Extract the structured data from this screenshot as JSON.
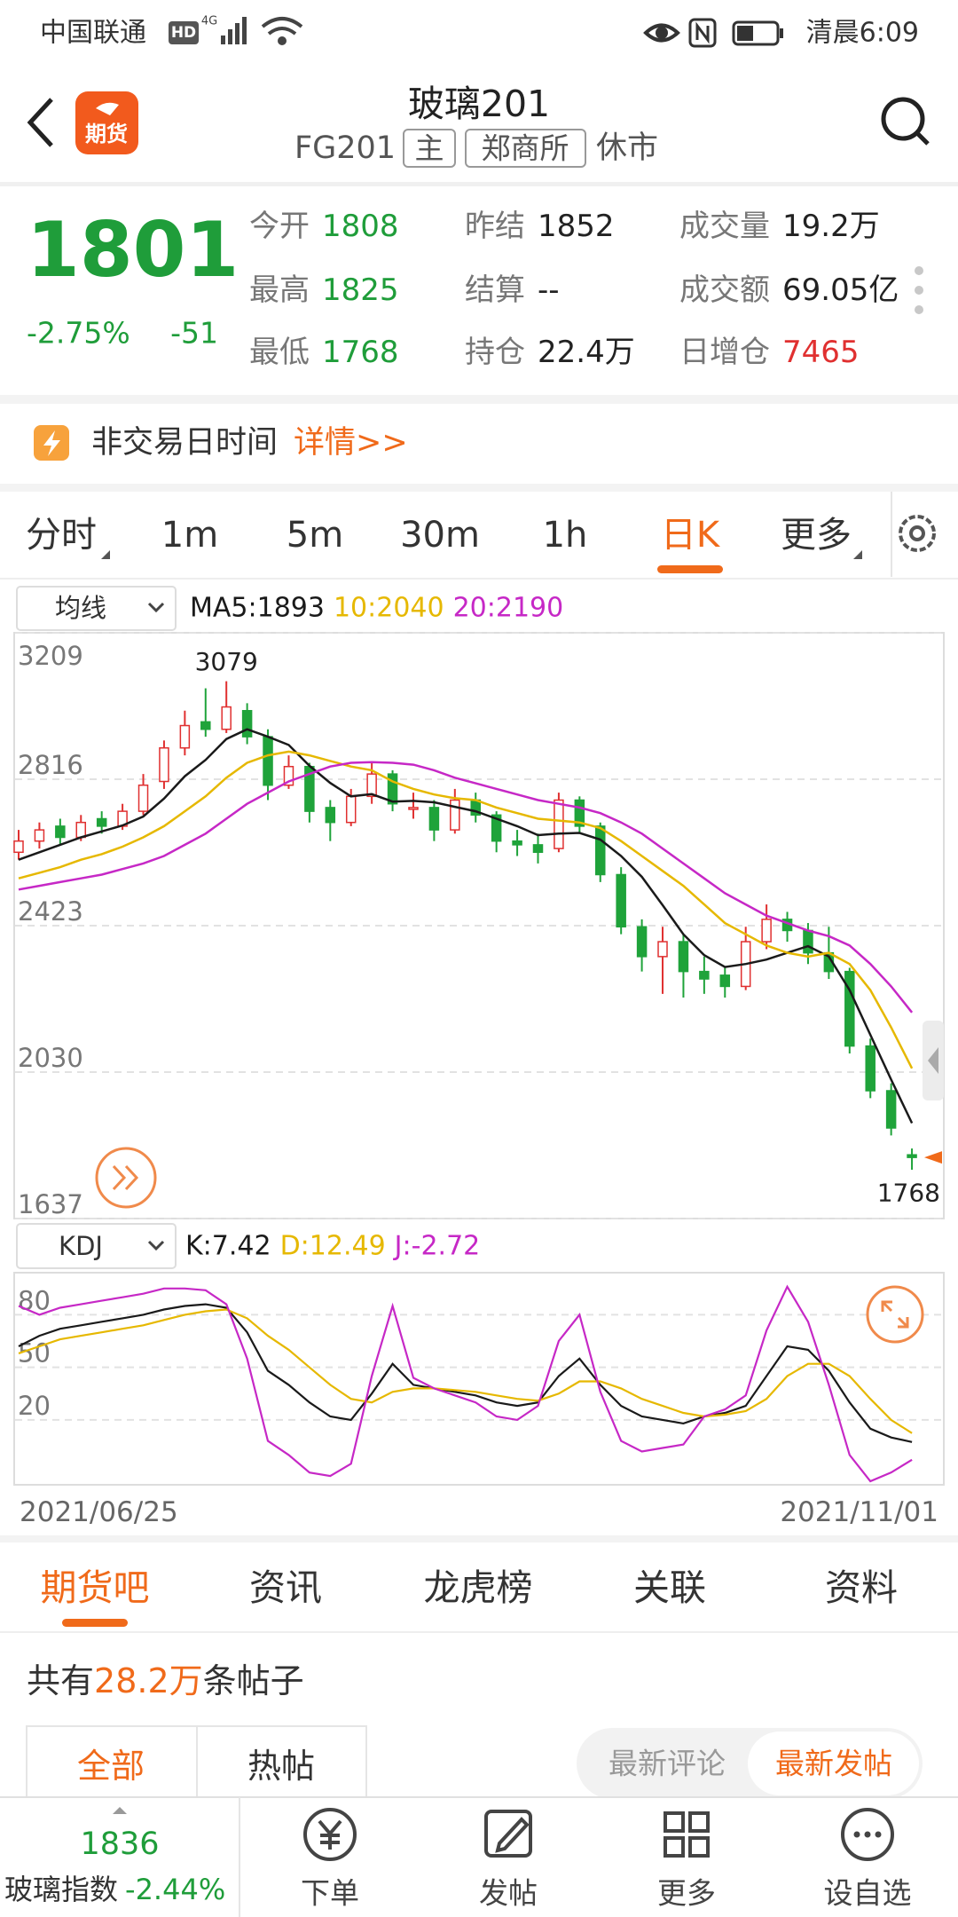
{
  "status_bar": {
    "carrier": "中国联通",
    "badges": [
      "HD",
      "4G"
    ],
    "time": "清晨6:09"
  },
  "header": {
    "logo": "期货",
    "title": "玻璃201",
    "code": "FG201",
    "tags": [
      "主",
      "郑商所"
    ],
    "status": "休市"
  },
  "quote": {
    "price": "1801",
    "change_pct": "-2.75%",
    "change": "-51",
    "color": "#1f9d3a",
    "fields": [
      {
        "label": "今开",
        "value": "1808",
        "color": "#1f9d3a"
      },
      {
        "label": "昨结",
        "value": "1852",
        "color": "#222222"
      },
      {
        "label": "成交量",
        "value": "19.2万",
        "color": "#222222"
      },
      {
        "label": "最高",
        "value": "1825",
        "color": "#1f9d3a"
      },
      {
        "label": "结算",
        "value": "--",
        "color": "#222222"
      },
      {
        "label": "成交额",
        "value": "69.05亿",
        "color": "#222222"
      },
      {
        "label": "最低",
        "value": "1768",
        "color": "#1f9d3a"
      },
      {
        "label": "持仓",
        "value": "22.4万",
        "color": "#222222"
      },
      {
        "label": "日增仓",
        "value": "7465",
        "color": "#e03030"
      }
    ]
  },
  "notice": {
    "text": "非交易日时间",
    "link": "详情>>"
  },
  "period_tabs": {
    "items": [
      "分时",
      "1m",
      "5m",
      "30m",
      "1h",
      "日K",
      "更多"
    ],
    "active": "日K"
  },
  "chart_data": [
    {
      "type": "candlestick",
      "indicator": "均线",
      "up_color": "#e03030",
      "down_color": "#1fa33a",
      "open": [
        2620,
        2650,
        2690,
        2660,
        2710,
        2690,
        2730,
        2810,
        2900,
        2970,
        2950,
        3000,
        2930,
        2800,
        2850,
        2740,
        2700,
        2770,
        2830,
        2740,
        2740,
        2680,
        2760,
        2720,
        2650,
        2640,
        2630,
        2760,
        2690,
        2560,
        2420,
        2340,
        2380,
        2300,
        2290,
        2260,
        2380,
        2440,
        2410,
        2350,
        2300,
        2100,
        1980,
        1808
      ],
      "high": [
        2680,
        2700,
        2710,
        2720,
        2730,
        2750,
        2830,
        2920,
        3000,
        3060,
        3079,
        3020,
        2950,
        2880,
        2860,
        2760,
        2790,
        2860,
        2840,
        2780,
        2760,
        2790,
        2780,
        2730,
        2680,
        2670,
        2780,
        2770,
        2700,
        2580,
        2440,
        2420,
        2400,
        2340,
        2310,
        2420,
        2480,
        2460,
        2430,
        2420,
        2310,
        2120,
        2000,
        1825
      ],
      "low": [
        2600,
        2630,
        2640,
        2650,
        2670,
        2680,
        2720,
        2790,
        2880,
        2930,
        2940,
        2910,
        2760,
        2790,
        2700,
        2650,
        2690,
        2750,
        2730,
        2710,
        2650,
        2670,
        2700,
        2620,
        2610,
        2590,
        2620,
        2670,
        2540,
        2400,
        2300,
        2240,
        2230,
        2240,
        2230,
        2250,
        2360,
        2380,
        2320,
        2280,
        2080,
        1960,
        1860,
        1768
      ],
      "close": [
        2650,
        2680,
        2660,
        2700,
        2690,
        2730,
        2800,
        2900,
        2960,
        2950,
        3010,
        2930,
        2800,
        2850,
        2730,
        2700,
        2770,
        2830,
        2750,
        2740,
        2680,
        2760,
        2720,
        2650,
        2640,
        2620,
        2760,
        2690,
        2560,
        2420,
        2340,
        2380,
        2300,
        2280,
        2260,
        2380,
        2440,
        2410,
        2350,
        2300,
        2100,
        1980,
        1880,
        1801
      ],
      "overlays": [
        {
          "name": "MA5:1893",
          "color": "#1a1a1a",
          "values": [
            2600,
            2620,
            2640,
            2660,
            2676,
            2692,
            2716,
            2764,
            2824,
            2868,
            2924,
            2950,
            2930,
            2908,
            2852,
            2806,
            2770,
            2776,
            2756,
            2758,
            2754,
            2742,
            2730,
            2710,
            2690,
            2666,
            2670,
            2672,
            2654,
            2610,
            2554,
            2478,
            2400,
            2344,
            2312,
            2320,
            2332,
            2350,
            2368,
            2340,
            2250,
            2130,
            2010,
            1893
          ]
        },
        {
          "name": "10:2040",
          "color": "#e6b800",
          "values": [
            2550,
            2565,
            2580,
            2600,
            2615,
            2635,
            2660,
            2690,
            2730,
            2770,
            2820,
            2860,
            2880,
            2890,
            2880,
            2865,
            2850,
            2840,
            2810,
            2790,
            2775,
            2765,
            2760,
            2740,
            2725,
            2710,
            2705,
            2700,
            2685,
            2650,
            2610,
            2570,
            2530,
            2480,
            2430,
            2400,
            2370,
            2350,
            2340,
            2350,
            2320,
            2250,
            2150,
            2040
          ]
        },
        {
          "name": "20:2190",
          "color": "#c628c6",
          "values": [
            2520,
            2530,
            2540,
            2550,
            2560,
            2575,
            2590,
            2610,
            2640,
            2670,
            2710,
            2750,
            2780,
            2810,
            2830,
            2850,
            2860,
            2862,
            2860,
            2855,
            2840,
            2820,
            2805,
            2790,
            2775,
            2760,
            2750,
            2740,
            2725,
            2700,
            2670,
            2630,
            2590,
            2550,
            2510,
            2480,
            2450,
            2430,
            2410,
            2395,
            2370,
            2320,
            2260,
            2190
          ]
        }
      ],
      "ylim": [
        1637,
        3209
      ],
      "yticks": [
        1637,
        2030,
        2423,
        2816,
        3209
      ],
      "grid": true
    },
    {
      "type": "line",
      "indicator": "KDJ",
      "categories": [
        "2021/06/25",
        null,
        null,
        null,
        null,
        null,
        null,
        null,
        null,
        null,
        null,
        null,
        null,
        null,
        null,
        null,
        null,
        null,
        null,
        null,
        null,
        null,
        null,
        null,
        null,
        null,
        null,
        null,
        null,
        null,
        null,
        null,
        null,
        null,
        null,
        null,
        null,
        null,
        null,
        null,
        null,
        null,
        null,
        "2021/11/01"
      ],
      "series": [
        {
          "name": "K:7.42",
          "color": "#1a1a1a",
          "values": [
            62,
            68,
            72,
            74,
            76,
            78,
            80,
            83,
            85,
            86,
            84,
            70,
            48,
            40,
            30,
            22,
            20,
            35,
            52,
            40,
            38,
            36,
            34,
            30,
            28,
            30,
            45,
            55,
            40,
            28,
            22,
            20,
            18,
            22,
            24,
            28,
            45,
            62,
            60,
            48,
            30,
            15,
            10,
            7.42
          ]
        },
        {
          "name": "D:12.49",
          "color": "#e6b800",
          "values": [
            58,
            62,
            66,
            68,
            70,
            72,
            74,
            77,
            80,
            82,
            83,
            78,
            68,
            60,
            50,
            40,
            32,
            30,
            36,
            38,
            38,
            37,
            36,
            34,
            32,
            31,
            35,
            42,
            42,
            38,
            32,
            28,
            24,
            22,
            23,
            25,
            32,
            45,
            52,
            52,
            45,
            32,
            20,
            12.49
          ]
        },
        {
          "name": "J:-2.72",
          "color": "#c628c6",
          "values": [
            85,
            80,
            84,
            86,
            88,
            90,
            92,
            95,
            95,
            94,
            86,
            55,
            8,
            0,
            -10,
            -12,
            -5,
            45,
            85,
            44,
            38,
            34,
            30,
            22,
            20,
            28,
            65,
            80,
            36,
            8,
            2,
            4,
            6,
            22,
            26,
            34,
            71,
            96,
            76,
            40,
            0,
            -15,
            -10,
            -2.72
          ]
        }
      ],
      "ylim": [
        -17,
        104
      ],
      "yticks": [
        20,
        50,
        80
      ],
      "grid": true
    }
  ],
  "bottom_tabs": {
    "items": [
      "期货吧",
      "资讯",
      "龙虎榜",
      "关联",
      "资料"
    ],
    "active": "期货吧"
  },
  "posts": {
    "prefix": "共有",
    "count": "28.2万",
    "suffix": "条帖子",
    "filters": [
      "全部",
      "热帖"
    ],
    "sorts": [
      "最新评论",
      "最新发帖"
    ]
  },
  "bottom_nav": {
    "index_value": "1836",
    "index_name": "玻璃指数",
    "index_change": "-2.44%",
    "index_color": "#1f9d3a",
    "items": [
      "下单",
      "发帖",
      "更多",
      "设自选"
    ]
  }
}
